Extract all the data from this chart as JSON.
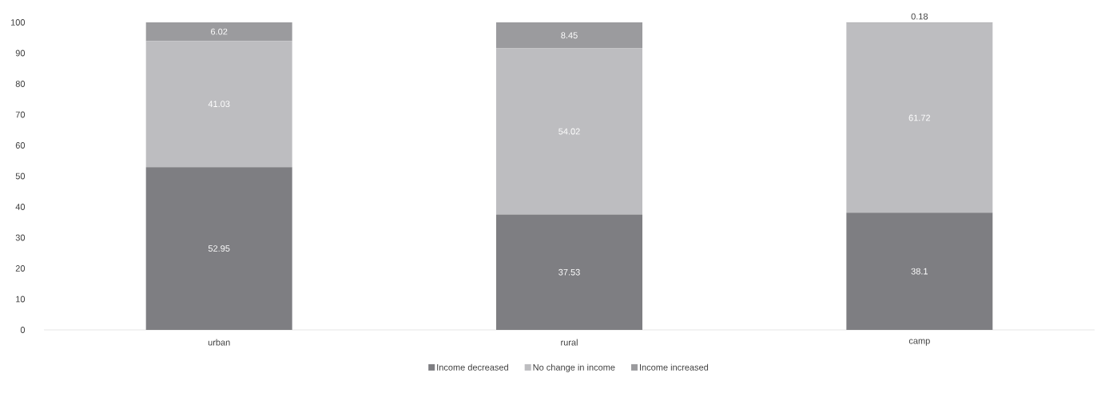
{
  "chart_data": {
    "type": "bar",
    "stacked": true,
    "categories": [
      "urban",
      "rural",
      "camp"
    ],
    "series": [
      {
        "name": "Income decreased",
        "color": "#7e7e82",
        "values": [
          52.95,
          37.53,
          38.1
        ]
      },
      {
        "name": "No change in income",
        "color": "#bdbdc0",
        "values": [
          41.03,
          54.02,
          61.72
        ]
      },
      {
        "name": "Income increased",
        "color": "#9b9b9e",
        "values": [
          6.02,
          8.45,
          0.18
        ]
      }
    ],
    "ylim": [
      0,
      100
    ],
    "yticks": [
      0,
      10,
      20,
      30,
      40,
      50,
      60,
      70,
      80,
      90,
      100
    ],
    "data_labels": true,
    "grid": false,
    "legend": "bottom"
  }
}
